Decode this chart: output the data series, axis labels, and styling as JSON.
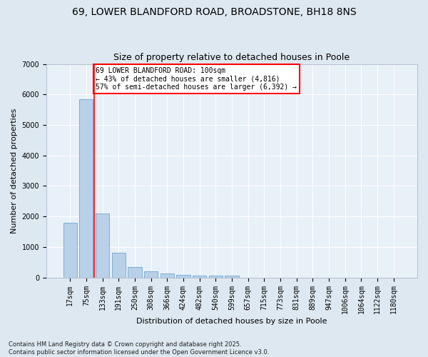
{
  "title1": "69, LOWER BLANDFORD ROAD, BROADSTONE, BH18 8NS",
  "title2": "Size of property relative to detached houses in Poole",
  "xlabel": "Distribution of detached houses by size in Poole",
  "ylabel": "Number of detached properties",
  "categories": [
    "17sqm",
    "75sqm",
    "133sqm",
    "191sqm",
    "250sqm",
    "308sqm",
    "366sqm",
    "424sqm",
    "482sqm",
    "540sqm",
    "599sqm",
    "657sqm",
    "715sqm",
    "773sqm",
    "831sqm",
    "889sqm",
    "947sqm",
    "1006sqm",
    "1064sqm",
    "1122sqm",
    "1180sqm"
  ],
  "values": [
    1800,
    5850,
    2100,
    820,
    340,
    195,
    130,
    90,
    70,
    55,
    50,
    0,
    0,
    0,
    0,
    0,
    0,
    0,
    0,
    0,
    0
  ],
  "bar_color": "#b8d0e8",
  "bar_edge_color": "#6fa8d0",
  "red_line_x": 1.5,
  "annotation_text": "69 LOWER BLANDFORD ROAD: 100sqm\n← 43% of detached houses are smaller (4,816)\n57% of semi-detached houses are larger (6,392) →",
  "annotation_box_color": "white",
  "annotation_box_edge_color": "red",
  "ylim": [
    0,
    7000
  ],
  "yticks": [
    0,
    1000,
    2000,
    3000,
    4000,
    5000,
    6000,
    7000
  ],
  "background_color": "#dde8f0",
  "plot_bg_color": "#e8f0f8",
  "grid_color": "white",
  "footer": "Contains HM Land Registry data © Crown copyright and database right 2025.\nContains public sector information licensed under the Open Government Licence v3.0.",
  "title1_fontsize": 10,
  "title2_fontsize": 9,
  "tick_fontsize": 7,
  "ylabel_fontsize": 8,
  "xlabel_fontsize": 8,
  "annotation_fontsize": 7,
  "footer_fontsize": 6
}
